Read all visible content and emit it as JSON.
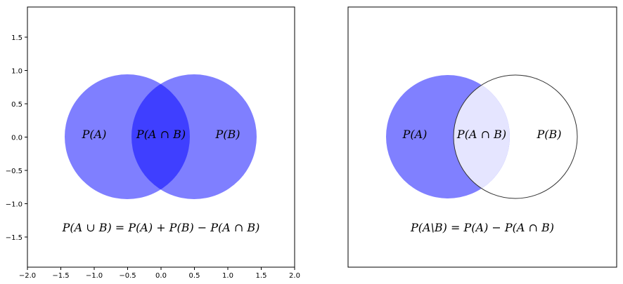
{
  "left_panel": {
    "circle_labels": {
      "a": "P(A)",
      "intersection": "P(A ∩ B)",
      "b": "P(B)"
    },
    "formula": "P(A ∪ B) = P(A) + P(B) − P(A ∩ B)",
    "x_ticks": [
      "−2.0",
      "−1.5",
      "−1.0",
      "−0.5",
      "0.0",
      "0.5",
      "1.0",
      "1.5",
      "2.0"
    ],
    "y_ticks": [
      "1.5",
      "1.0",
      "0.5",
      "0.0",
      "−0.5",
      "−1.0",
      "−1.5"
    ],
    "colors": {
      "circle": "#0000ff",
      "circle_opacity": 0.5
    }
  },
  "right_panel": {
    "circle_labels": {
      "a": "P(A)",
      "intersection": "P(A ∩ B)",
      "b": "P(B)"
    },
    "formula": "P(A\\B) = P(A) − P(A ∩ B)",
    "colors": {
      "a_fill": "#8080ff",
      "intersection_fill": "#e5e5ff",
      "b_outline": "#333333"
    }
  }
}
